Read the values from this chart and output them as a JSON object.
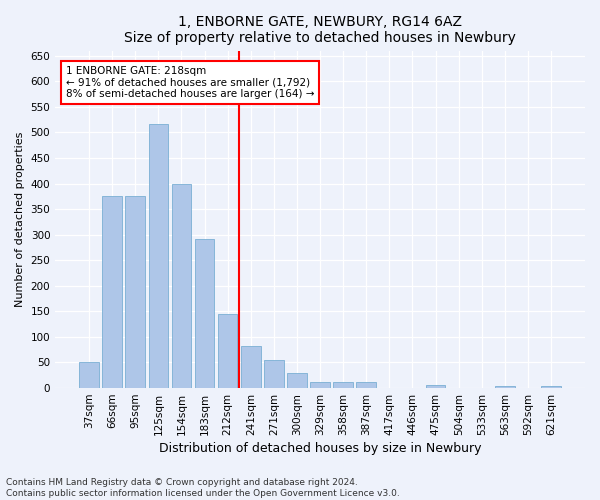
{
  "title": "1, ENBORNE GATE, NEWBURY, RG14 6AZ",
  "subtitle": "Size of property relative to detached houses in Newbury",
  "xlabel": "Distribution of detached houses by size in Newbury",
  "ylabel": "Number of detached properties",
  "categories": [
    "37sqm",
    "66sqm",
    "95sqm",
    "125sqm",
    "154sqm",
    "183sqm",
    "212sqm",
    "241sqm",
    "271sqm",
    "300sqm",
    "329sqm",
    "358sqm",
    "387sqm",
    "417sqm",
    "446sqm",
    "475sqm",
    "504sqm",
    "533sqm",
    "563sqm",
    "592sqm",
    "621sqm"
  ],
  "values": [
    50,
    375,
    375,
    517,
    400,
    292,
    144,
    83,
    55,
    30,
    12,
    12,
    12,
    0,
    0,
    6,
    0,
    0,
    5,
    0,
    5
  ],
  "bar_color": "#aec6e8",
  "bar_edge_color": "#7aafd4",
  "property_line_label": "1 ENBORNE GATE: 218sqm",
  "annotation_line1": "← 91% of detached houses are smaller (1,792)",
  "annotation_line2": "8% of semi-detached houses are larger (164) →",
  "annotation_box_color": "white",
  "annotation_box_edge": "red",
  "vline_color": "red",
  "vline_x_index": 6,
  "ylim": [
    0,
    660
  ],
  "yticks": [
    0,
    50,
    100,
    150,
    200,
    250,
    300,
    350,
    400,
    450,
    500,
    550,
    600,
    650
  ],
  "footer1": "Contains HM Land Registry data © Crown copyright and database right 2024.",
  "footer2": "Contains public sector information licensed under the Open Government Licence v3.0.",
  "bg_color": "#eef2fb",
  "plot_bg_color": "#eef2fb",
  "title_fontsize": 10,
  "subtitle_fontsize": 9,
  "xlabel_fontsize": 9,
  "ylabel_fontsize": 8,
  "tick_fontsize": 7.5,
  "annot_fontsize": 7.5,
  "footer_fontsize": 6.5
}
